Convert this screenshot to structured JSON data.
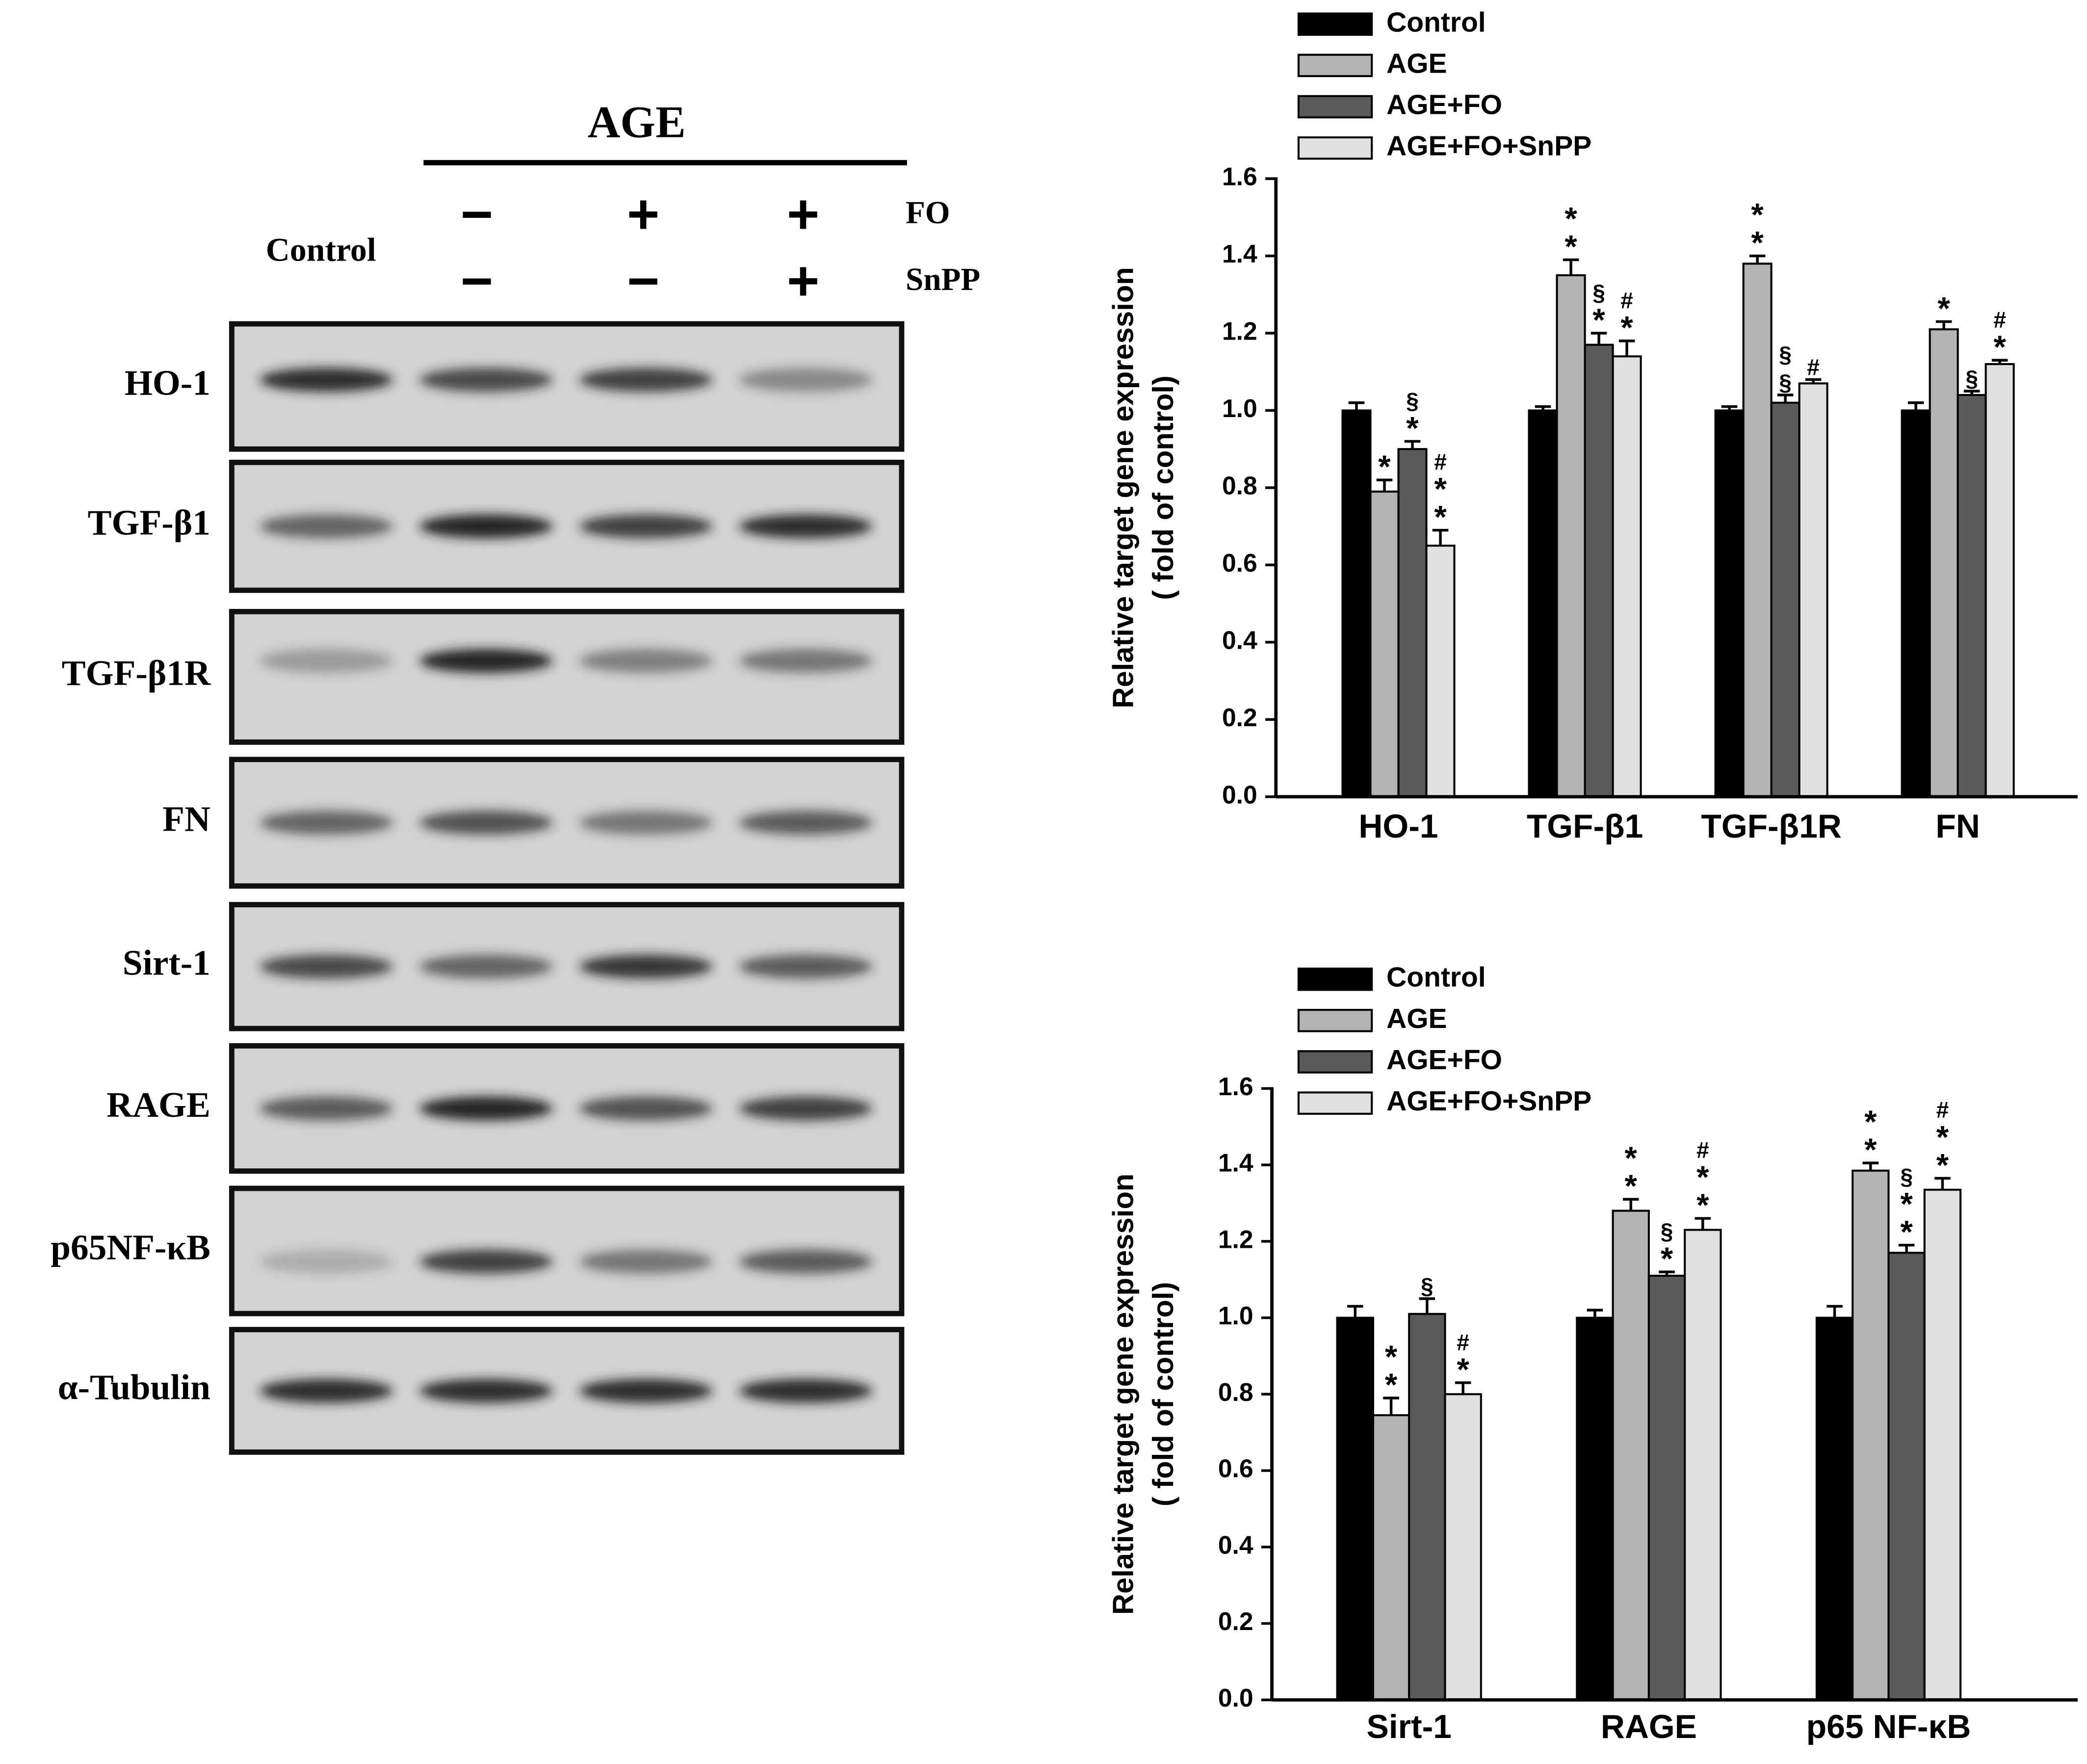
{
  "blot": {
    "group_label": "AGE",
    "control_label": "Control",
    "row_labels": [
      "FO",
      "SnPP"
    ],
    "signs": [
      [
        "−",
        "+",
        "+"
      ],
      [
        "−",
        "−",
        "+"
      ]
    ],
    "proteins": [
      "HO-1",
      "TGF-β1",
      "TGF-β1R",
      "FN",
      "Sirt-1",
      "RAGE",
      "p65NF-κB",
      "α-Tubulin"
    ]
  },
  "chart_data": [
    {
      "type": "bar",
      "ylabel": [
        "Relative target gene expression",
        "( fold of control)"
      ],
      "categories": [
        "HO-1",
        "TGF-β1",
        "TGF-β1R",
        "FN"
      ],
      "ylim": [
        0,
        1.6
      ],
      "yticks": [
        {
          "value": 0,
          "label": "0.0"
        },
        {
          "value": 0.2,
          "label": "0.2"
        },
        {
          "value": 0.4,
          "label": "0.4"
        },
        {
          "value": 0.6,
          "label": "0.6"
        },
        {
          "value": 0.8,
          "label": "0.8"
        },
        {
          "value": 1,
          "label": "1.0"
        },
        {
          "value": 1.2,
          "label": "1.2"
        },
        {
          "value": 1.4,
          "label": "1.4"
        },
        {
          "value": 1.6,
          "label": "1.6"
        }
      ],
      "legend": "top-left",
      "series": [
        {
          "name": "Control",
          "color": "#000000",
          "values": [
            1.0,
            1.0,
            1.0,
            1.0
          ],
          "errors": [
            0.02,
            0.01,
            0.01,
            0.02
          ],
          "annotations": [
            [],
            [],
            [],
            []
          ]
        },
        {
          "name": "AGE",
          "color": "#b4b4b4",
          "values": [
            0.79,
            1.35,
            1.38,
            1.21
          ],
          "errors": [
            0.03,
            0.04,
            0.02,
            0.02
          ],
          "annotations": [
            [
              "*"
            ],
            [
              "*",
              "*"
            ],
            [
              "*",
              "*"
            ],
            [
              "*"
            ]
          ]
        },
        {
          "name": "AGE+FO",
          "color": "#5a5a5a",
          "values": [
            0.9,
            1.17,
            1.02,
            1.04
          ],
          "errors": [
            0.02,
            0.03,
            0.02,
            0.01
          ],
          "annotations": [
            [
              "§",
              "*"
            ],
            [
              "§",
              "*"
            ],
            [
              "§",
              "§"
            ],
            [
              "§"
            ]
          ]
        },
        {
          "name": "AGE+FO+SnPP",
          "color": "#e0e0e0",
          "values": [
            0.65,
            1.14,
            1.07,
            1.12
          ],
          "errors": [
            0.04,
            0.04,
            0.01,
            0.01
          ],
          "annotations": [
            [
              "#",
              "*",
              "*"
            ],
            [
              "#",
              "*"
            ],
            [
              "#"
            ],
            [
              "#",
              "*"
            ]
          ]
        }
      ]
    },
    {
      "type": "bar",
      "ylabel": [
        "Relative target gene expression",
        "( fold of control)"
      ],
      "categories": [
        "Sirt-1",
        "RAGE",
        "p65 NF-κB"
      ],
      "ylim": [
        0,
        1.6
      ],
      "yticks": [
        {
          "value": 0,
          "label": "0.0"
        },
        {
          "value": 0.2,
          "label": "0.2"
        },
        {
          "value": 0.4,
          "label": "0.4"
        },
        {
          "value": 0.6,
          "label": "0.6"
        },
        {
          "value": 0.8,
          "label": "0.8"
        },
        {
          "value": 1,
          "label": "1.0"
        },
        {
          "value": 1.2,
          "label": "1.2"
        },
        {
          "value": 1.4,
          "label": "1.4"
        },
        {
          "value": 1.6,
          "label": "1.6"
        }
      ],
      "legend": "top-left",
      "series": [
        {
          "name": "Control",
          "color": "#000000",
          "values": [
            1.0,
            1.0,
            1.0
          ],
          "errors": [
            0.03,
            0.02,
            0.03
          ],
          "annotations": [
            [],
            [],
            []
          ]
        },
        {
          "name": "AGE",
          "color": "#b4b4b4",
          "values": [
            0.745,
            1.28,
            1.385
          ],
          "errors": [
            0.045,
            0.03,
            0.02
          ],
          "annotations": [
            [
              "*",
              "*"
            ],
            [
              "*",
              "*"
            ],
            [
              "*",
              "*"
            ]
          ]
        },
        {
          "name": "AGE+FO",
          "color": "#5a5a5a",
          "values": [
            1.01,
            1.11,
            1.17
          ],
          "errors": [
            0.04,
            0.01,
            0.02
          ],
          "annotations": [
            [
              "§"
            ],
            [
              "§",
              "*"
            ],
            [
              "§",
              "*",
              "*"
            ]
          ]
        },
        {
          "name": "AGE+FO+SnPP",
          "color": "#e0e0e0",
          "values": [
            0.8,
            1.23,
            1.335
          ],
          "errors": [
            0.03,
            0.03,
            0.03
          ],
          "annotations": [
            [
              "#",
              "*"
            ],
            [
              "#",
              "*",
              "*"
            ],
            [
              "#",
              "*",
              "*"
            ]
          ]
        }
      ]
    }
  ]
}
